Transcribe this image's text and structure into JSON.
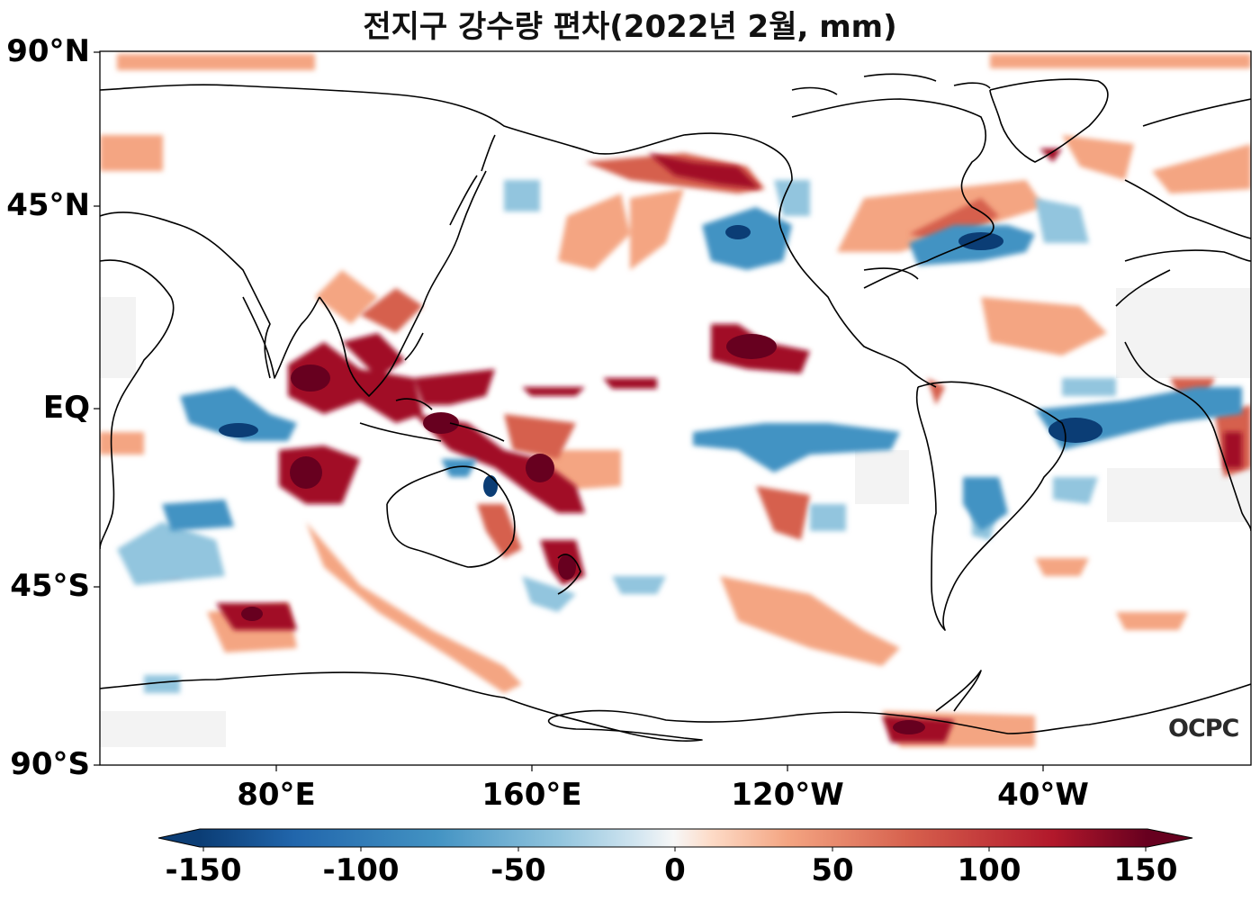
{
  "title": "전지구 강수량 편차(2022년 2월, mm)",
  "watermark": "OCPC",
  "map": {
    "y_labels": [
      "90°N",
      "45°N",
      "EQ",
      "45°S",
      "90°S"
    ],
    "x_labels": [
      "80°E",
      "160°E",
      "120°W",
      "40°W"
    ]
  },
  "colorbar": {
    "colors": [
      "#0b3d75",
      "#2166ac",
      "#4393c3",
      "#92c5de",
      "#d1e5f0",
      "#f7f7f7",
      "#fddbc7",
      "#f4a582",
      "#d6604d",
      "#b2182b",
      "#67001f"
    ],
    "labels": [
      "-150",
      "-100",
      "-50",
      "0",
      "50",
      "100",
      "150"
    ],
    "range": [
      -150,
      150
    ]
  },
  "colors": {
    "wet": "#67001f",
    "wet_mid": "#d6604d",
    "wet_light": "#f4a582",
    "dry": "#0b3d75",
    "dry_mid": "#4393c3",
    "dry_light": "#92c5de"
  }
}
